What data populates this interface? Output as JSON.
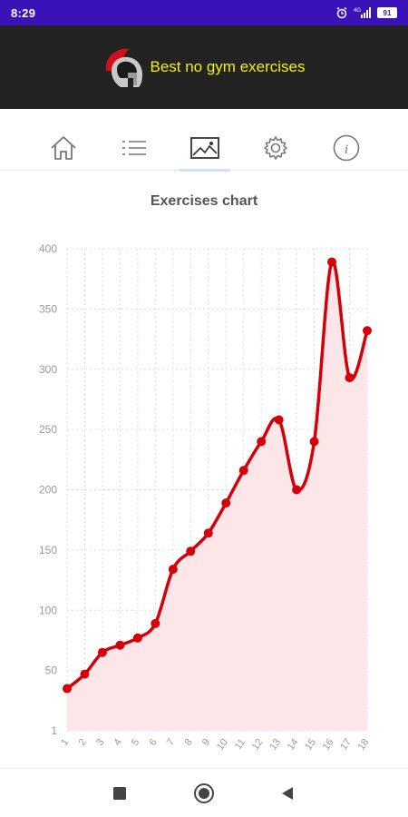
{
  "status": {
    "time": "8:29",
    "battery": "91"
  },
  "app": {
    "title": "Best no gym exercises"
  },
  "tabs": [
    {
      "name": "home-icon"
    },
    {
      "name": "list-icon"
    },
    {
      "name": "chart-icon",
      "active": true
    },
    {
      "name": "gear-icon"
    },
    {
      "name": "info-icon"
    }
  ],
  "chart": {
    "title": "Exercises chart"
  },
  "chart_data": {
    "type": "area",
    "title": "Exercises chart",
    "x": [
      1,
      2,
      3,
      4,
      5,
      6,
      7,
      8,
      9,
      10,
      11,
      12,
      13,
      14,
      15,
      16,
      17,
      18
    ],
    "y_tick_labels": [
      "1",
      "50",
      "100",
      "150",
      "200",
      "250",
      "300",
      "350",
      "400"
    ],
    "ylim": [
      0,
      400
    ],
    "grid": true,
    "series": [
      {
        "values": [
          35,
          47,
          65,
          71,
          77,
          89,
          134,
          149,
          164,
          189,
          216,
          240,
          258,
          200,
          240,
          389,
          293,
          332
        ]
      }
    ],
    "line_color": "#d4000a",
    "fill_color": "#fde6e8"
  },
  "nav": [
    {
      "name": "recent-apps-square-icon"
    },
    {
      "name": "home-circle-icon"
    },
    {
      "name": "back-triangle-icon"
    }
  ]
}
